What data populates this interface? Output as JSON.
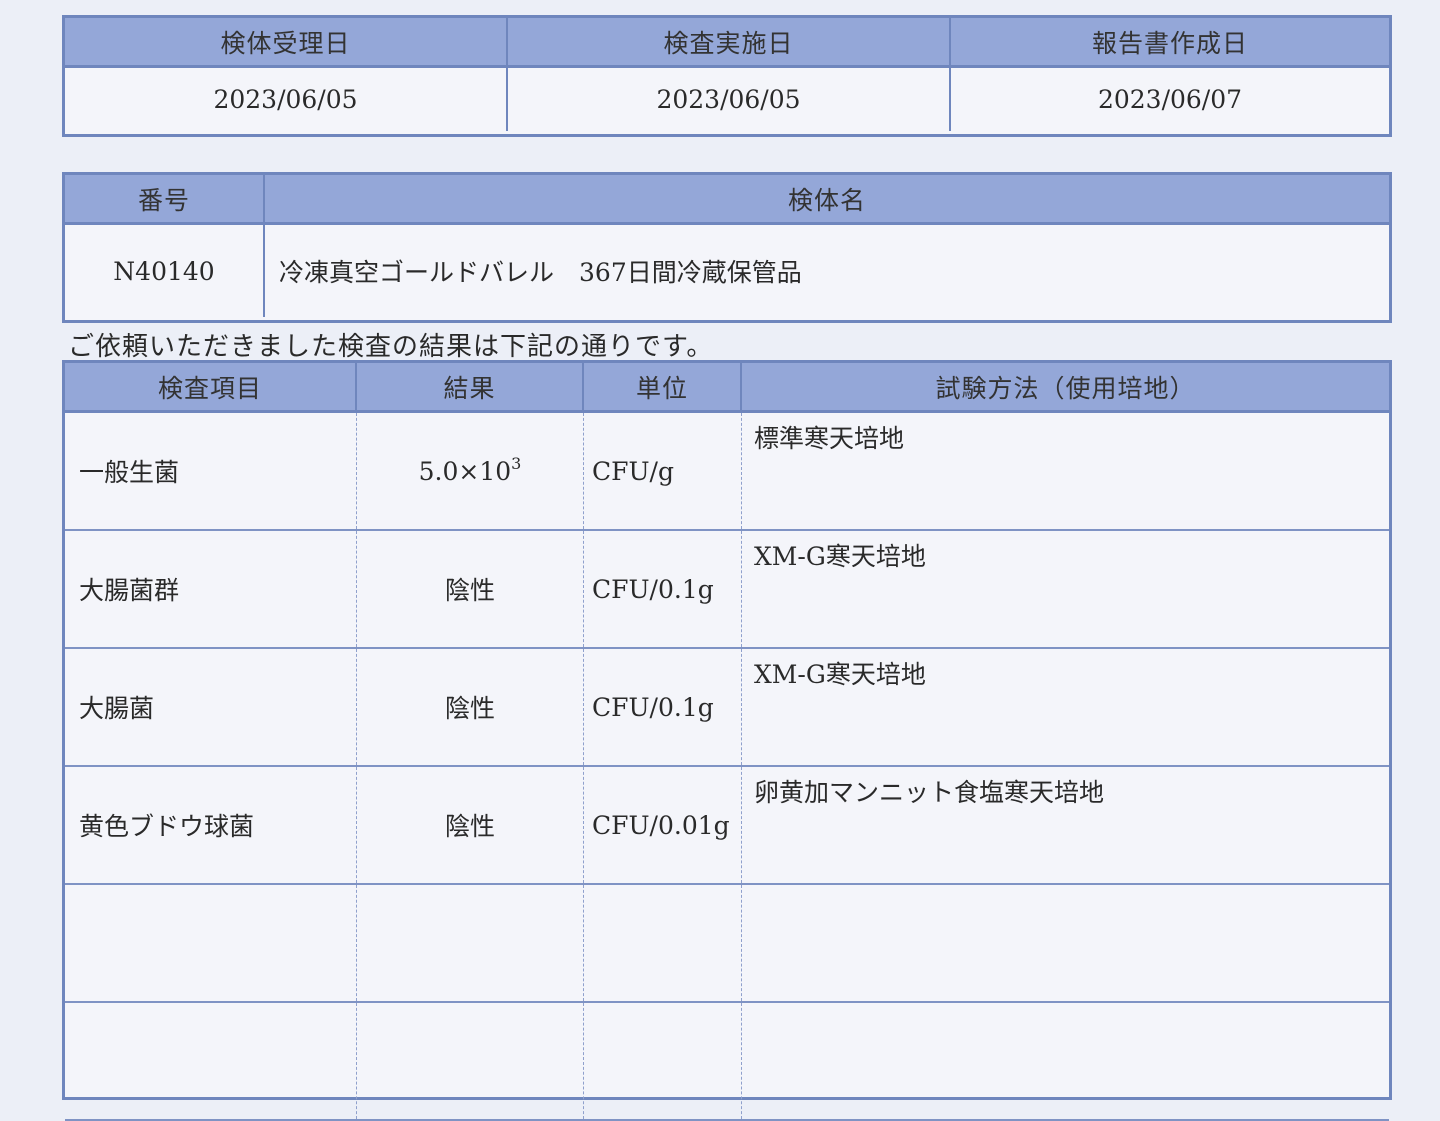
{
  "dates_table": {
    "headers": [
      "検体受理日",
      "検査実施日",
      "報告書作成日"
    ],
    "values": [
      "2023/06/05",
      "2023/06/05",
      "2023/06/07"
    ]
  },
  "sample_table": {
    "headers": [
      "番号",
      "検体名"
    ],
    "number": "N40140",
    "name": "冷凍真空ゴールドバレル　367日間冷蔵保管品"
  },
  "intro_text": "ご依頼いただきました検査の結果は下記の通りです。",
  "results_table": {
    "headers": [
      "検査項目",
      "結果",
      "単位",
      "試験方法（使用培地）"
    ],
    "rows": [
      {
        "item": "一般生菌",
        "result": "5.0×10",
        "exp": "3",
        "unit": "CFU/g",
        "method": "標準寒天培地"
      },
      {
        "item": "大腸菌群",
        "result": "陰性",
        "exp": "",
        "unit": "CFU/0.1g",
        "method": "XM-G寒天培地"
      },
      {
        "item": "大腸菌",
        "result": "陰性",
        "exp": "",
        "unit": "CFU/0.1g",
        "method": "XM-G寒天培地"
      },
      {
        "item": "黄色ブドウ球菌",
        "result": "陰性",
        "exp": "",
        "unit": "CFU/0.01g",
        "method": "卵黄加マンニット食塩寒天培地"
      },
      {
        "item": "",
        "result": "",
        "exp": "",
        "unit": "",
        "method": ""
      },
      {
        "item": "",
        "result": "",
        "exp": "",
        "unit": "",
        "method": ""
      }
    ]
  }
}
